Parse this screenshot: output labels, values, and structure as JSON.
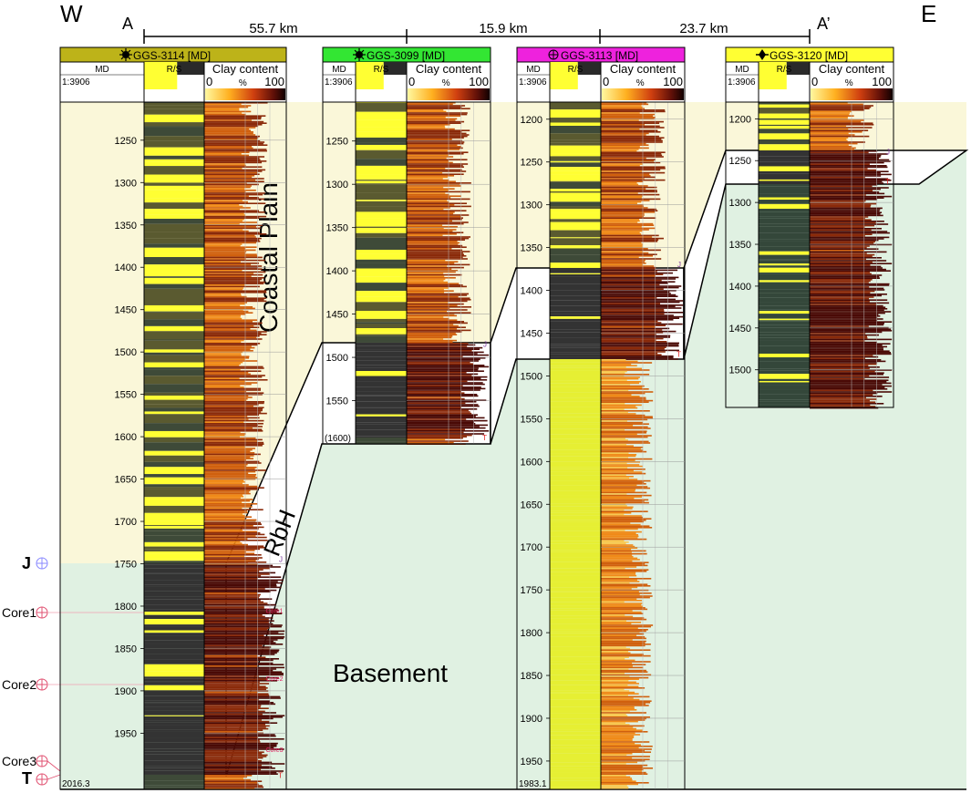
{
  "section": {
    "west_label": "W",
    "east_label": "E",
    "start_label": "A",
    "end_label": "A’",
    "distances": [
      "55.7 km",
      "15.9 km",
      "23.7 km"
    ],
    "zones": {
      "coastal_plain": "Coastal Plain",
      "rbh": "RbH",
      "basement": "Basement"
    },
    "colors": {
      "coastal": "#faf7d9",
      "basement": "#e0f1e2",
      "sand": "#ffff33",
      "shale": "#3e4a38",
      "clay_dark": "#5a0b08"
    }
  },
  "markers": [
    {
      "label": "J",
      "depth_ref": "1750"
    },
    {
      "label": "Core1",
      "depth_ref": "1810"
    },
    {
      "label": "Core2",
      "depth_ref": "1890"
    },
    {
      "label": "Core3",
      "depth_ref": "1975"
    },
    {
      "label": "T",
      "depth_ref": "2010"
    }
  ],
  "track_headers": {
    "md": "MD",
    "scale": "1:3906",
    "rs": "R/S",
    "clay": "Clay content",
    "clay_min": "0",
    "clay_unit": "%",
    "clay_max": "100"
  },
  "wells": [
    {
      "name": "GGS-3114 [MD]",
      "header_color": "#bdb319",
      "symbol": "sun",
      "depth_top": 1205,
      "depth_bottom": 2016.3,
      "bottom_label": "2016.3",
      "ticks": [
        1250,
        1300,
        1350,
        1400,
        1450,
        1500,
        1550,
        1600,
        1650,
        1700,
        1750,
        1800,
        1850,
        1900,
        1950
      ],
      "formation_tops": [
        {
          "name": "J",
          "depth": 1750
        },
        {
          "name": "T",
          "depth": 2005
        }
      ],
      "core_labels": [
        {
          "name": "Core1",
          "depth": 1808
        },
        {
          "name": "Core2",
          "depth": 1888
        },
        {
          "name": "Core3",
          "depth": 1972
        }
      ]
    },
    {
      "name": "GGS-3099 [MD]",
      "header_color": "#33e633",
      "symbol": "sun",
      "depth_top": 1205,
      "depth_bottom": 1600,
      "bottom_label": "(1600)",
      "ticks": [
        1250,
        1300,
        1350,
        1400,
        1450,
        1500,
        1550
      ],
      "formation_tops": [
        {
          "name": "J",
          "depth": 1490
        },
        {
          "name": "T",
          "depth": 1598
        }
      ],
      "core_labels": []
    },
    {
      "name": "GGS-3113 [MD]",
      "header_color": "#ee22dd",
      "symbol": "crosshair",
      "depth_top": 1180,
      "depth_bottom": 1983.1,
      "bottom_label": "1983.1",
      "ticks": [
        1200,
        1250,
        1300,
        1350,
        1400,
        1450,
        1500,
        1550,
        1600,
        1650,
        1700,
        1750,
        1800,
        1850,
        1900,
        1950
      ],
      "formation_tops": [
        {
          "name": "J",
          "depth": 1375
        },
        {
          "name": "T",
          "depth": 1480
        }
      ],
      "core_labels": []
    },
    {
      "name": "GGS-3120 [MD]",
      "header_color": "#ffff33",
      "symbol": "diamond",
      "depth_top": 1180,
      "depth_bottom": 1545,
      "bottom_label": "",
      "ticks": [
        1200,
        1250,
        1300,
        1350,
        1400,
        1450,
        1500
      ],
      "formation_tops": [
        {
          "name": "J",
          "depth": 1245
        },
        {
          "name": "T",
          "depth": 1280
        }
      ],
      "core_labels": []
    }
  ]
}
